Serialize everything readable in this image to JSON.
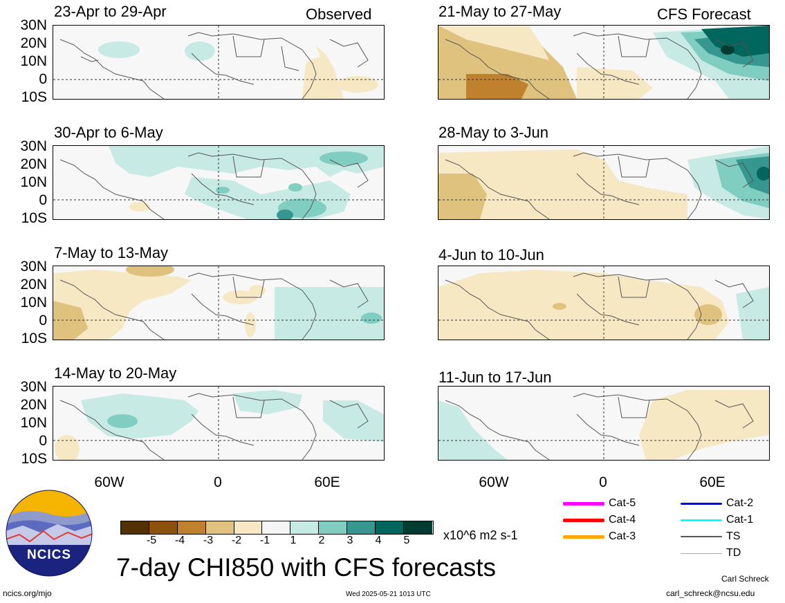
{
  "header": {
    "observed_label": "Observed",
    "forecast_label": "CFS Forecast"
  },
  "latitude_ticks": [
    "30N",
    "20N",
    "10N",
    "0",
    "10S"
  ],
  "longitude_ticks": [
    "60W",
    "0",
    "60E"
  ],
  "panels": [
    {
      "title": "23-Apr to 29-Apr",
      "column": "observed"
    },
    {
      "title": "30-Apr to 6-May",
      "column": "observed"
    },
    {
      "title": "7-May to 13-May",
      "column": "observed"
    },
    {
      "title": "14-May to 20-May",
      "column": "observed"
    },
    {
      "title": "21-May to 27-May",
      "column": "forecast"
    },
    {
      "title": "28-May to 3-Jun",
      "column": "forecast"
    },
    {
      "title": "4-Jun to 10-Jun",
      "column": "forecast"
    },
    {
      "title": "11-Jun to 17-Jun",
      "column": "forecast"
    }
  ],
  "colorbar": {
    "labels": [
      "-5",
      "-4",
      "-3",
      "-2",
      "-1",
      "1",
      "2",
      "3",
      "4",
      "5"
    ],
    "colors": [
      "#543005",
      "#8c510a",
      "#bf812d",
      "#dfc27d",
      "#f6e8c3",
      "#f5f5f5",
      "#c7eae5",
      "#80cdc1",
      "#35978f",
      "#01665e",
      "#003c30"
    ],
    "units": "x10^6 m2 s-1"
  },
  "legend": [
    {
      "label": "Cat-5",
      "color": "#ff00ff"
    },
    {
      "label": "Cat-4",
      "color": "#ff0000"
    },
    {
      "label": "Cat-3",
      "color": "#ffa500"
    },
    {
      "label": "Cat-2",
      "color": "#0000ff"
    },
    {
      "label": "Cat-1",
      "color": "#00ffff"
    },
    {
      "label": "TS",
      "color": "#555555"
    },
    {
      "label": "TD",
      "color": "#aaaaaa"
    }
  ],
  "footer": {
    "main_title": "7-day CHI850 with CFS forecasts",
    "logo_text": "NCICS",
    "url": "ncics.org/mjo",
    "timestamp": "Wed 2025-05-21 1013 UTC",
    "author": "Carl Schreck",
    "email": "carl_schreck@ncsu.edu"
  },
  "chart_data": {
    "type": "heatmap",
    "variable": "7-day CHI850 anomaly",
    "units": "x10^6 m2 s-1",
    "lat_range": [
      "10S",
      "30N"
    ],
    "lon_ticks": [
      "60W",
      "0",
      "60E"
    ],
    "color_levels": [
      -5,
      -4,
      -3,
      -2,
      -1,
      1,
      2,
      3,
      4,
      5
    ],
    "panels": [
      {
        "title": "23-Apr to 29-Apr",
        "source": "Observed"
      },
      {
        "title": "30-Apr to 6-May",
        "source": "Observed"
      },
      {
        "title": "7-May to 13-May",
        "source": "Observed"
      },
      {
        "title": "14-May to 20-May",
        "source": "Observed"
      },
      {
        "title": "21-May to 27-May",
        "source": "CFS Forecast"
      },
      {
        "title": "28-May to 3-Jun",
        "source": "CFS Forecast"
      },
      {
        "title": "4-Jun to 10-Jun",
        "source": "CFS Forecast"
      },
      {
        "title": "11-Jun to 17-Jun",
        "source": "CFS Forecast"
      }
    ]
  }
}
